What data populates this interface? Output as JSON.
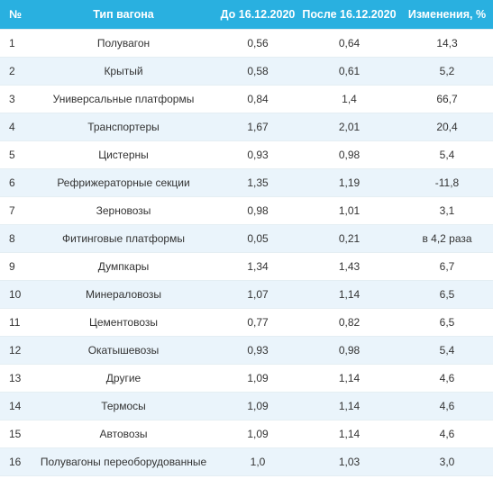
{
  "table": {
    "headers": [
      "№",
      "Тип вагона",
      "До 16.12.2020",
      "После 16.12.2020",
      "Изменения, %"
    ],
    "rows": [
      [
        "1",
        "Полувагон",
        "0,56",
        "0,64",
        "14,3"
      ],
      [
        "2",
        "Крытый",
        "0,58",
        "0,61",
        "5,2"
      ],
      [
        "3",
        "Универсальные платформы",
        "0,84",
        "1,4",
        "66,7"
      ],
      [
        "4",
        "Транспортеры",
        "1,67",
        "2,01",
        "20,4"
      ],
      [
        "5",
        "Цистерны",
        "0,93",
        "0,98",
        "5,4"
      ],
      [
        "6",
        "Рефрижераторные секции",
        "1,35",
        "1,19",
        "-11,8"
      ],
      [
        "7",
        "Зерновозы",
        "0,98",
        "1,01",
        "3,1"
      ],
      [
        "8",
        "Фитинговые платформы",
        "0,05",
        "0,21",
        "в 4,2 раза"
      ],
      [
        "9",
        "Думпкары",
        "1,34",
        "1,43",
        "6,7"
      ],
      [
        "10",
        "Минераловозы",
        "1,07",
        "1,14",
        "6,5"
      ],
      [
        "11",
        "Цементовозы",
        "0,77",
        "0,82",
        "6,5"
      ],
      [
        "12",
        "Окатышевозы",
        "0,93",
        "0,98",
        "5,4"
      ],
      [
        "13",
        "Другие",
        "1,09",
        "1,14",
        "4,6"
      ],
      [
        "14",
        "Термосы",
        "1,09",
        "1,14",
        "4,6"
      ],
      [
        "15",
        "Автовозы",
        "1,09",
        "1,14",
        "4,6"
      ],
      [
        "16",
        "Полувагоны переоборудованные",
        "1,0",
        "1,03",
        "3,0"
      ]
    ]
  }
}
